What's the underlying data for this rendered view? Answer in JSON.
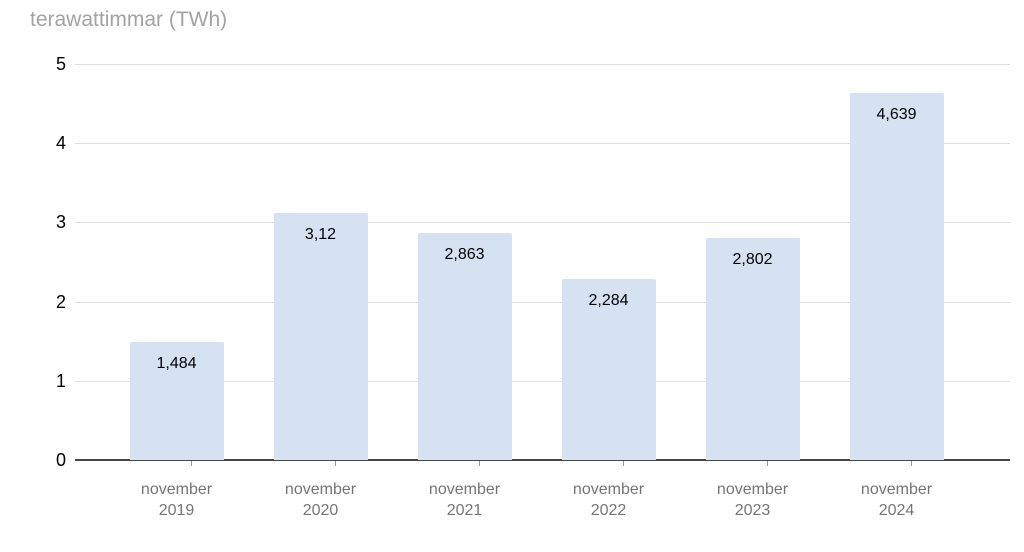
{
  "chart_data": {
    "type": "bar",
    "title": "terawattimmar (TWh)",
    "categories": [
      [
        "november",
        "2019"
      ],
      [
        "november",
        "2020"
      ],
      [
        "november",
        "2021"
      ],
      [
        "november",
        "2022"
      ],
      [
        "november",
        "2023"
      ],
      [
        "november",
        "2024"
      ]
    ],
    "values": [
      1.484,
      3.12,
      2.863,
      2.284,
      2.802,
      4.639
    ],
    "value_labels": [
      "1,484",
      "3,12",
      "2,863",
      "2,284",
      "2,802",
      "4,639"
    ],
    "xlabel": "",
    "ylabel": "terawattimmar (TWh)",
    "ylim": [
      0,
      5
    ],
    "yticks": [
      0,
      1,
      2,
      3,
      4,
      5
    ],
    "grid": true,
    "legend": "none",
    "colors": {
      "bar_fill": "#d6e1f2",
      "gridline": "#e0e0e0",
      "axis_line": "#474747",
      "y_tick_label": "#000000",
      "value_label": "#000000",
      "x_label": "#757575",
      "title": "#a3a3a3",
      "x_tick": "#9e9e9e",
      "background": "#ffffff"
    }
  }
}
